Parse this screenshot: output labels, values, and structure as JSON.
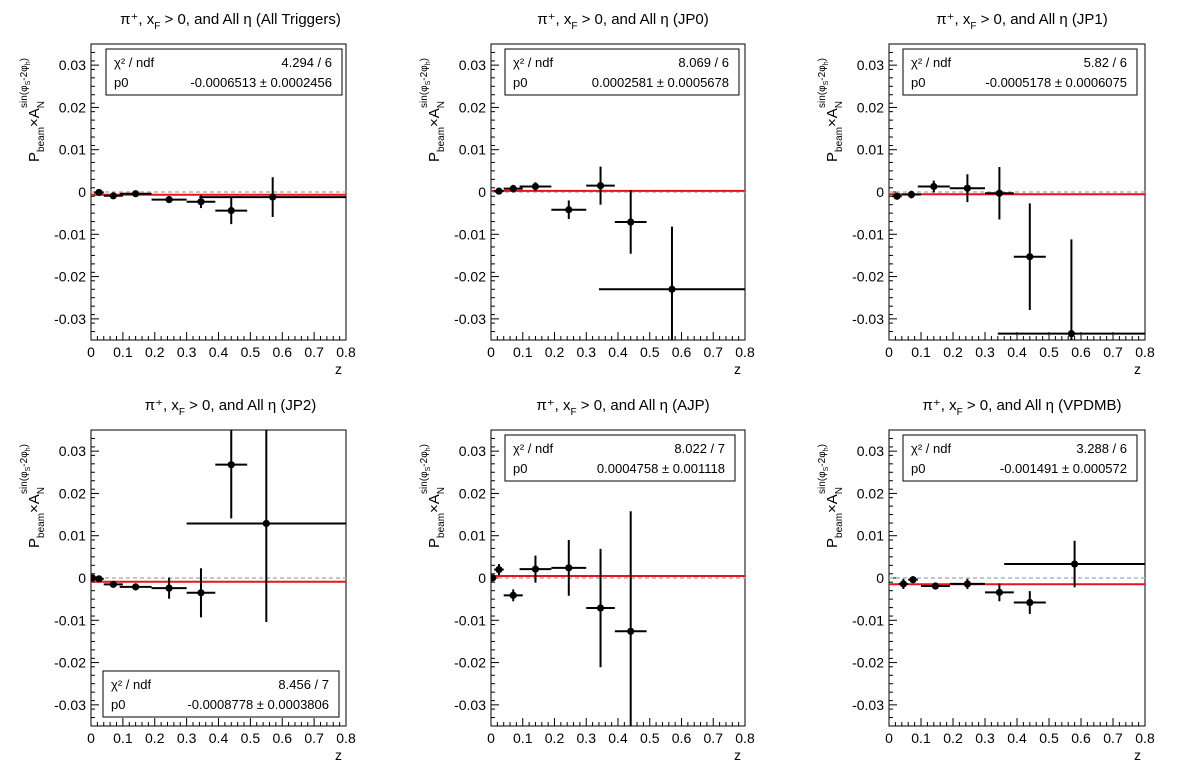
{
  "colors": {
    "fit_line": "#e8141b",
    "points": "#000000",
    "zero_line": "#b4b4b4"
  },
  "chart_data": [
    {
      "type": "scatter",
      "title": "π⁺, x_F > 0, and All η (All Triggers)",
      "xlabel": "z",
      "ylabel": "P_beam × A_N^{sin(φ_S − 2φ_h)}",
      "xlim": [
        0,
        0.8
      ],
      "ylim": [
        -0.035,
        0.035
      ],
      "stats": {
        "chi2_label": "χ² / ndf",
        "chi2_value": "4.294 / 6",
        "p0_label": "p0",
        "p0_value": "-0.0006513 ± 0.0002456",
        "position": "top"
      },
      "fit_p0": -0.0006513,
      "points": [
        {
          "x": 0.025,
          "y": -0.0001,
          "xerr": 0.015,
          "yerr": 0.0005
        },
        {
          "x": 0.07,
          "y": -0.0009,
          "xerr": 0.03,
          "yerr": 0.0007
        },
        {
          "x": 0.14,
          "y": -0.0004,
          "xerr": 0.05,
          "yerr": 0.0007
        },
        {
          "x": 0.245,
          "y": -0.0018,
          "xerr": 0.055,
          "yerr": 0.0008
        },
        {
          "x": 0.345,
          "y": -0.0023,
          "xerr": 0.045,
          "yerr": 0.0015
        },
        {
          "x": 0.44,
          "y": -0.0044,
          "xerr": 0.05,
          "yerr": 0.0032
        },
        {
          "x": 0.57,
          "y": -0.0012,
          "xerr": 0.23,
          "yerr": 0.0047
        }
      ]
    },
    {
      "type": "scatter",
      "title": "π⁺, x_F > 0, and All η (JP0)",
      "xlabel": "z",
      "ylabel": "P_beam × A_N^{sin(φ_S − 2φ_h)}",
      "xlim": [
        0,
        0.8
      ],
      "ylim": [
        -0.035,
        0.035
      ],
      "stats": {
        "chi2_label": "χ² / ndf",
        "chi2_value": "8.069 / 6",
        "p0_label": "p0",
        "p0_value": "0.0002581 ± 0.0005678",
        "position": "top"
      },
      "fit_p0": 0.0002581,
      "points": [
        {
          "x": 0.025,
          "y": 0.0002,
          "xerr": 0.015,
          "yerr": 0.0006
        },
        {
          "x": 0.07,
          "y": 0.0008,
          "xerr": 0.03,
          "yerr": 0.0009
        },
        {
          "x": 0.14,
          "y": 0.0013,
          "xerr": 0.05,
          "yerr": 0.001
        },
        {
          "x": 0.245,
          "y": -0.0042,
          "xerr": 0.055,
          "yerr": 0.0022
        },
        {
          "x": 0.345,
          "y": 0.0015,
          "xerr": 0.045,
          "yerr": 0.0045
        },
        {
          "x": 0.44,
          "y": -0.0071,
          "xerr": 0.05,
          "yerr": 0.0075
        },
        {
          "x": 0.57,
          "y": -0.023,
          "xerr": 0.23,
          "yerr": 0.0148
        }
      ]
    },
    {
      "type": "scatter",
      "title": "π⁺, x_F > 0, and All η (JP1)",
      "xlabel": "z",
      "ylabel": "P_beam × A_N^{sin(φ_S − 2φ_h)}",
      "xlim": [
        0,
        0.8
      ],
      "ylim": [
        -0.035,
        0.035
      ],
      "stats": {
        "chi2_label": "χ² / ndf",
        "chi2_value": "5.82 / 6",
        "p0_label": "p0",
        "p0_value": "-0.0005178 ± 0.0006075",
        "position": "top"
      },
      "fit_p0": -0.0005178,
      "points": [
        {
          "x": 0.025,
          "y": -0.001,
          "xerr": 0.015,
          "yerr": 0.0007
        },
        {
          "x": 0.07,
          "y": -0.0006,
          "xerr": 0.03,
          "yerr": 0.0009
        },
        {
          "x": 0.14,
          "y": 0.0013,
          "xerr": 0.05,
          "yerr": 0.0014
        },
        {
          "x": 0.245,
          "y": 0.0009,
          "xerr": 0.055,
          "yerr": 0.0033
        },
        {
          "x": 0.345,
          "y": -0.0003,
          "xerr": 0.045,
          "yerr": 0.0062
        },
        {
          "x": 0.44,
          "y": -0.0153,
          "xerr": 0.05,
          "yerr": 0.0126
        },
        {
          "x": 0.57,
          "y": -0.0335,
          "xerr": 0.23,
          "yerr": 0.0223
        }
      ]
    },
    {
      "type": "scatter",
      "title": "π⁺, x_F > 0, and All η (JP2)",
      "xlabel": "z",
      "ylabel": "P_beam × A_N^{sin(φ_S − 2φ_h)}",
      "xlim": [
        0,
        0.8
      ],
      "ylim": [
        -0.035,
        0.035
      ],
      "stats": {
        "chi2_label": "χ² / ndf",
        "chi2_value": "8.456 / 7",
        "p0_label": "p0",
        "p0_value": "-0.0008778 ± 0.0003806",
        "position": "bottom"
      },
      "fit_p0": -0.0008778,
      "points": [
        {
          "x": 0.005,
          "y": 0.0,
          "xerr": 0.005,
          "yerr": 0.0003
        },
        {
          "x": 0.025,
          "y": -0.0002,
          "xerr": 0.015,
          "yerr": 0.0005
        },
        {
          "x": 0.07,
          "y": -0.0015,
          "xerr": 0.03,
          "yerr": 0.0007
        },
        {
          "x": 0.14,
          "y": -0.0021,
          "xerr": 0.05,
          "yerr": 0.0008
        },
        {
          "x": 0.245,
          "y": -0.0024,
          "xerr": 0.055,
          "yerr": 0.0025
        },
        {
          "x": 0.345,
          "y": -0.0035,
          "xerr": 0.045,
          "yerr": 0.0058
        },
        {
          "x": 0.44,
          "y": 0.0268,
          "xerr": 0.05,
          "yerr": 0.0127
        },
        {
          "x": 0.55,
          "y": 0.0129,
          "xerr": 0.25,
          "yerr": 0.0233
        }
      ]
    },
    {
      "type": "scatter",
      "title": "π⁺, x_F > 0, and All η (AJP)",
      "xlabel": "z",
      "ylabel": "P_beam × A_N^{sin(φ_S − 2φ_h)}",
      "xlim": [
        0,
        0.8
      ],
      "ylim": [
        -0.035,
        0.035
      ],
      "stats": {
        "chi2_label": "χ² / ndf",
        "chi2_value": "8.022 / 7",
        "p0_label": "p0",
        "p0_value": "0.0004758 ± 0.001118",
        "position": "top"
      },
      "fit_p0": 0.0004758,
      "points": [
        {
          "x": 0.005,
          "y": 0.0,
          "xerr": 0.005,
          "yerr": 0.0004
        },
        {
          "x": 0.025,
          "y": 0.002,
          "xerr": 0.015,
          "yerr": 0.0013
        },
        {
          "x": 0.07,
          "y": -0.0041,
          "xerr": 0.03,
          "yerr": 0.0014
        },
        {
          "x": 0.14,
          "y": 0.0021,
          "xerr": 0.05,
          "yerr": 0.0032
        },
        {
          "x": 0.245,
          "y": 0.0024,
          "xerr": 0.055,
          "yerr": 0.0066
        },
        {
          "x": 0.345,
          "y": -0.0071,
          "xerr": 0.045,
          "yerr": 0.014
        },
        {
          "x": 0.44,
          "y": -0.0126,
          "xerr": 0.05,
          "yerr": 0.0284
        }
      ]
    },
    {
      "type": "scatter",
      "title": "π⁺, x_F > 0, and All η (VPDMB)",
      "xlabel": "z",
      "ylabel": "P_beam × A_N^{sin(φ_S − 2φ_h)}",
      "xlim": [
        0,
        0.8
      ],
      "ylim": [
        -0.035,
        0.035
      ],
      "stats": {
        "chi2_label": "χ² / ndf",
        "chi2_value": "3.288 / 6",
        "p0_label": "p0",
        "p0_value": "-0.001491 ± 0.000572",
        "position": "top"
      },
      "fit_p0": -0.001491,
      "points": [
        {
          "x": 0.045,
          "y": -0.0014,
          "xerr": 0.015,
          "yerr": 0.0012
        },
        {
          "x": 0.075,
          "y": -0.0004,
          "xerr": 0.015,
          "yerr": 0.0008
        },
        {
          "x": 0.145,
          "y": -0.0019,
          "xerr": 0.045,
          "yerr": 0.0006
        },
        {
          "x": 0.245,
          "y": -0.0014,
          "xerr": 0.055,
          "yerr": 0.0012
        },
        {
          "x": 0.345,
          "y": -0.0034,
          "xerr": 0.045,
          "yerr": 0.0021
        },
        {
          "x": 0.44,
          "y": -0.0058,
          "xerr": 0.05,
          "yerr": 0.0027
        },
        {
          "x": 0.58,
          "y": 0.0033,
          "xerr": 0.22,
          "yerr": 0.0055
        }
      ]
    }
  ]
}
